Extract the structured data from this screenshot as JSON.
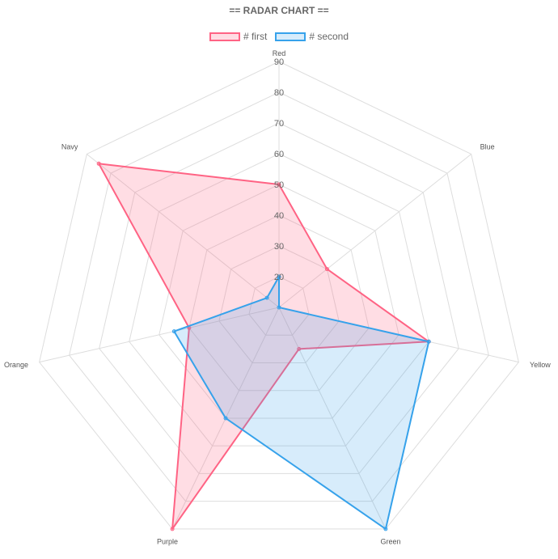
{
  "chart_data": {
    "type": "radar",
    "title": "== RADAR CHART ==",
    "labels": [
      "Red",
      "Blue",
      "Yellow",
      "Green",
      "Purple",
      "Orange",
      "Navy"
    ],
    "r_ticks": [
      20,
      30,
      40,
      50,
      60,
      70,
      80,
      90
    ],
    "r_range": [
      10,
      90
    ],
    "legend_position": "top-center",
    "grid": true,
    "series": [
      {
        "name": "# first",
        "values": [
          50,
          30,
          60,
          25,
          90,
          40,
          85
        ],
        "color": "#ff6384",
        "fill": "rgba(255,99,132,0.22)"
      },
      {
        "name": "# second",
        "values": [
          20,
          10,
          60,
          90,
          50,
          45,
          15
        ],
        "color": "#36a2eb",
        "fill": "rgba(54,162,235,0.2)"
      }
    ]
  }
}
